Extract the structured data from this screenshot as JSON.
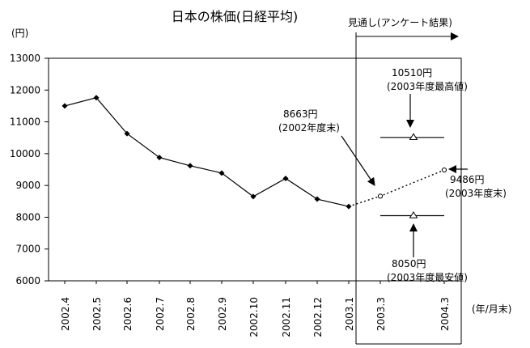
{
  "chart_data": {
    "type": "line",
    "title": "日本の株価(日経平均)",
    "ylabel": "(円)",
    "xlabel": "(年/月末)",
    "ylim": [
      6000,
      13000
    ],
    "yticks": [
      6000,
      7000,
      8000,
      9000,
      10000,
      11000,
      12000,
      13000
    ],
    "categories": [
      "2002.4",
      "2002.5",
      "2002.6",
      "2002.7",
      "2002.8",
      "2002.9",
      "2002.10",
      "2002.11",
      "2002.12",
      "2003.1",
      "2003.3",
      "2004.3"
    ],
    "series": [
      {
        "style": "solid",
        "marker": "diamond",
        "points": [
          {
            "x": "2002.4",
            "y": 11500
          },
          {
            "x": "2002.5",
            "y": 11760
          },
          {
            "x": "2002.6",
            "y": 10630
          },
          {
            "x": "2002.7",
            "y": 9880
          },
          {
            "x": "2002.8",
            "y": 9620
          },
          {
            "x": "2002.9",
            "y": 9390
          },
          {
            "x": "2002.10",
            "y": 8650
          },
          {
            "x": "2002.11",
            "y": 9220
          },
          {
            "x": "2002.12",
            "y": 8570
          },
          {
            "x": "2003.1",
            "y": 8340
          }
        ]
      },
      {
        "style": "dotted",
        "marker": "circle",
        "points": [
          {
            "x": "2003.1",
            "y": 8340
          },
          {
            "x": "2003.3",
            "y": 8663
          },
          {
            "x": "2004.3",
            "y": 9486
          }
        ]
      }
    ],
    "range_markers": [
      {
        "name": "high",
        "y": 10510
      },
      {
        "name": "low",
        "y": 8050
      }
    ],
    "forecast_label": "見通し(アンケート結果)",
    "annotations": [
      {
        "name": "high",
        "value": "10510円",
        "note": "(2003年度最高値)"
      },
      {
        "name": "end2002",
        "value": "8663円",
        "note": "(2002年度末)"
      },
      {
        "name": "end2003",
        "value": "9486円",
        "note": "(2003年度末)"
      },
      {
        "name": "low",
        "value": "8050円",
        "note": "(2003年度最安値)"
      }
    ],
    "grid": false,
    "legend": "none"
  }
}
